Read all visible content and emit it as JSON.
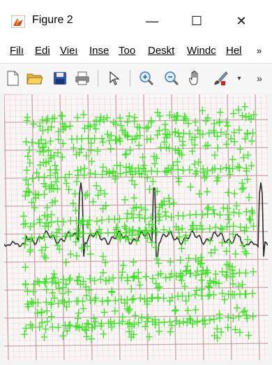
{
  "window": {
    "title": "Figure 2",
    "minimize_glyph": "—",
    "maximize_glyph": "☐",
    "close_glyph": "✕"
  },
  "menu": {
    "items": [
      {
        "label": "File",
        "shown": "Filı"
      },
      {
        "label": "Edit",
        "shown": "Edi"
      },
      {
        "label": "View",
        "shown": "Vieı"
      },
      {
        "label": "Insert",
        "shown": "Inse"
      },
      {
        "label": "Tools",
        "shown": "Too"
      },
      {
        "label": "Desktop",
        "shown": "Deskt"
      },
      {
        "label": "Window",
        "shown": "Windc"
      },
      {
        "label": "Help",
        "shown": "Hel"
      }
    ],
    "overflow_glyph": "»"
  },
  "toolbar": {
    "buttons": [
      "new-file-icon",
      "open-folder-icon",
      "save-icon",
      "print-icon",
      "pointer-icon",
      "zoom-in-icon",
      "zoom-out-icon",
      "pan-hand-icon",
      "brush-icon"
    ],
    "overflow_glyph": "»"
  },
  "colors": {
    "marker": "#33e61a",
    "trace": "#2b2b2b",
    "grid_major": "#c9a3a8",
    "grid_minor": "#e6d4d6",
    "paper": "#fbf7f7"
  }
}
